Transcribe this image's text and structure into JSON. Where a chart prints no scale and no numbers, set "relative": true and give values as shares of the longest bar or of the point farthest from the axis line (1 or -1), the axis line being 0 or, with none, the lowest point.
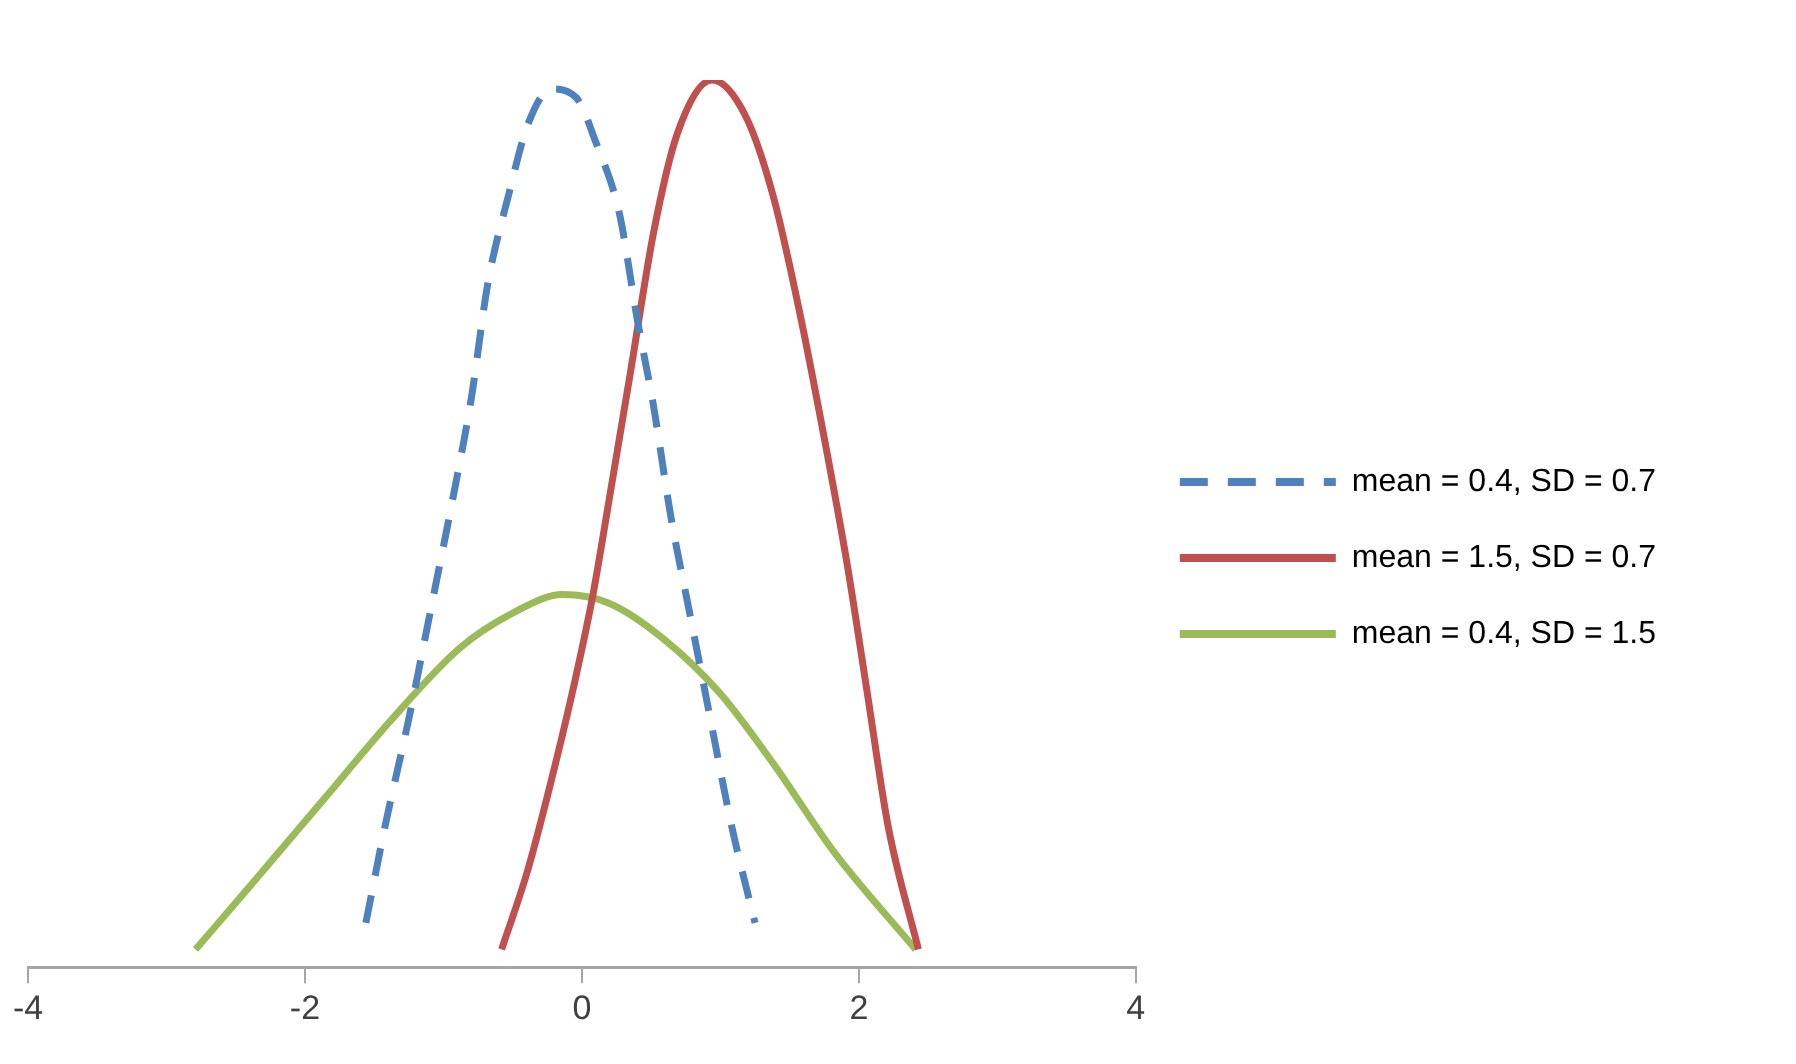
{
  "chart_data": {
    "type": "line",
    "relative": true,
    "xlim": [
      -4,
      4
    ],
    "xticks": [
      -4,
      -2,
      0,
      2,
      4
    ],
    "grid": false,
    "legend": "right",
    "marker": "none",
    "tick_labels": "x",
    "series": [
      {
        "name": "mean = 0.4, SD = 0.7",
        "color": "#4f81bd",
        "line_style": "dashed",
        "x": [
          -1.56,
          -1.42,
          -1.25,
          -1.07,
          -0.93,
          -0.8,
          -0.68,
          -0.53,
          -0.39,
          -0.22,
          -0.04,
          0.1,
          0.27,
          0.4,
          0.52,
          0.64,
          0.79,
          0.94,
          1.08,
          1.25
        ],
        "values": [
          0.05,
          0.16,
          0.28,
          0.42,
          0.53,
          0.64,
          0.77,
          0.87,
          0.95,
          0.99,
          0.98,
          0.93,
          0.85,
          0.73,
          0.63,
          0.51,
          0.39,
          0.27,
          0.16,
          0.05
        ]
      },
      {
        "name": "mean = 1.5, SD = 0.7",
        "color": "#c0504d",
        "line_style": "solid",
        "x": [
          -0.58,
          -0.39,
          -0.19,
          -0.04,
          0.08,
          0.2,
          0.35,
          0.52,
          0.69,
          0.94,
          1.18,
          1.38,
          1.57,
          1.77,
          1.92,
          2.06,
          2.21,
          2.43
        ],
        "values": [
          0.02,
          0.11,
          0.23,
          0.33,
          0.42,
          0.53,
          0.67,
          0.83,
          0.94,
          1,
          0.96,
          0.87,
          0.74,
          0.58,
          0.45,
          0.31,
          0.16,
          0.02
        ]
      },
      {
        "name": "mean = 0.4, SD = 1.5",
        "color": "#9bbb59",
        "line_style": "solid",
        "x": [
          -2.79,
          -2.35,
          -1.86,
          -1.37,
          -0.88,
          -0.49,
          -0.14,
          0.2,
          0.59,
          0.99,
          1.38,
          1.82,
          2.41
        ],
        "values": [
          0.02,
          0.1,
          0.19,
          0.28,
          0.36,
          0.4,
          0.42,
          0.41,
          0.37,
          0.31,
          0.23,
          0.13,
          0.02
        ]
      }
    ]
  }
}
